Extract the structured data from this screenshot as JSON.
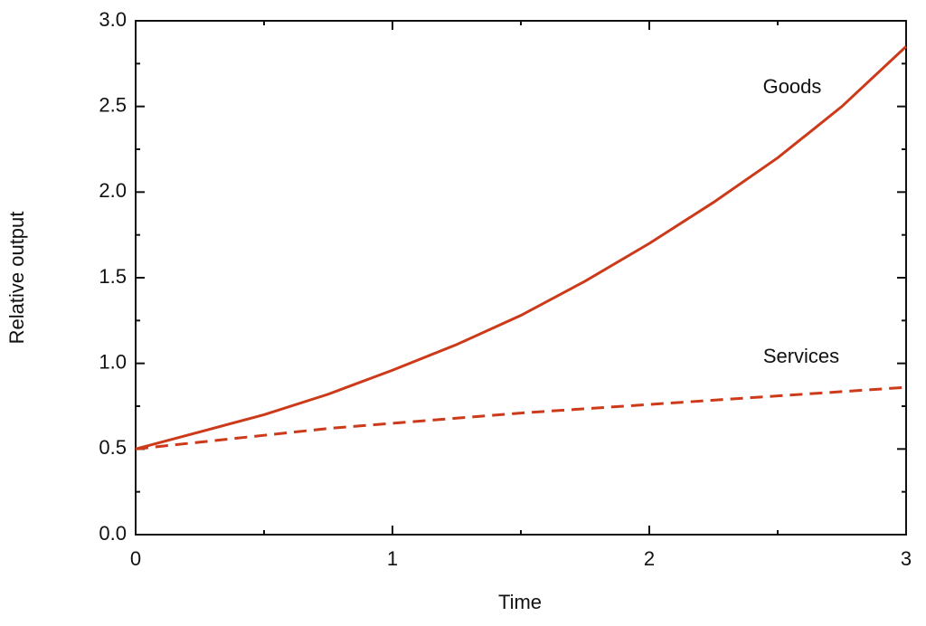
{
  "chart_data": {
    "type": "line",
    "x_label": "Time",
    "y_label": "Relative output",
    "x": [
      0,
      0.25,
      0.5,
      0.75,
      1,
      1.25,
      1.5,
      1.75,
      2,
      2.25,
      2.5,
      2.75,
      3
    ],
    "series": [
      {
        "name": "Goods",
        "color": "#cc3a1a",
        "dash": false,
        "values": [
          0.5,
          0.6,
          0.7,
          0.82,
          0.96,
          1.11,
          1.28,
          1.48,
          1.7,
          1.94,
          2.2,
          2.5,
          2.85
        ]
      },
      {
        "name": "Services",
        "color": "#cc3a1a",
        "dash": true,
        "values": [
          0.5,
          0.54,
          0.58,
          0.62,
          0.65,
          0.68,
          0.71,
          0.735,
          0.76,
          0.785,
          0.81,
          0.835,
          0.86
        ]
      }
    ],
    "xlim": [
      0,
      3
    ],
    "xticks": [
      0,
      1,
      2,
      3
    ],
    "ylim": [
      0,
      3
    ],
    "yticks": [
      {
        "value": 0,
        "label": "0.0"
      },
      {
        "value": 0.5,
        "label": "0.5"
      },
      {
        "value": 1,
        "label": "1.0"
      },
      {
        "value": 1.5,
        "label": "1.5"
      },
      {
        "value": 2,
        "label": "2.0"
      },
      {
        "value": 2.5,
        "label": "2.5"
      },
      {
        "value": 3,
        "label": "3.0"
      }
    ],
    "grid": false
  }
}
